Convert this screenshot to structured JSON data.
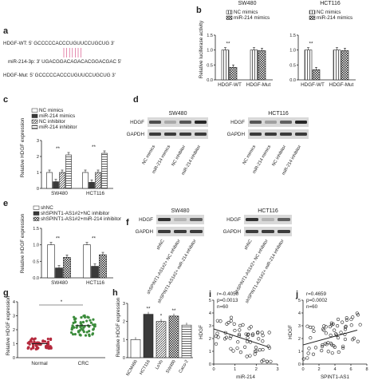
{
  "colors": {
    "ink": "#222222",
    "bar_dark": "#3a3a3a",
    "blot_bg": "#d9d9d9",
    "blot_band": "#1e1e1e",
    "seed_mark": "#d23c78"
  },
  "a": {
    "label": "a",
    "hdgf_wt": "HDGF-WT: 5' GCCCCCACCCUGUUCCUGCUG 3'",
    "mir": "miR-214-3p: 3' UGACGGACAGACACGGACGAC 5'",
    "hdgf_mut": "HDGF-Mut: 5' GCCCCCACCCUGUUCCUGCUG 3'"
  },
  "b": {
    "label": "b",
    "ylabel": "Relative luciferase activity",
    "legend": [
      "NC mimics",
      "miR-214 mimics"
    ],
    "panels": [
      {
        "title": "SW480",
        "sig": "**"
      },
      {
        "title": "HCT116",
        "sig": "**"
      }
    ]
  },
  "c": {
    "label": "c",
    "ylabel": "Relative HDGF expression",
    "legend": [
      "NC mimics",
      "miR-214 mimics",
      "NC inhibitor",
      "miR-214 inhibitor"
    ],
    "sig": [
      "**",
      "**",
      "**",
      "**"
    ]
  },
  "d": {
    "label": "d",
    "lanes": [
      "NC mimics",
      "miR-214 mimics",
      "NC inhibitor",
      "miR-214 inhibitor"
    ],
    "blots": [
      {
        "title": "SW480",
        "rows": [
          "HDGF",
          "GAPDH"
        ]
      },
      {
        "title": "HCT116",
        "rows": [
          "HDGF",
          "GAPDH"
        ]
      }
    ]
  },
  "e": {
    "label": "e",
    "ylabel": "Relative HDGF expression",
    "legend": [
      "shNC",
      "shSPINT1-AS1#2+NC inhibitor",
      "shSPINT1-AS1#2+miR-214 inhibitor"
    ],
    "sig": [
      "**",
      "*",
      "**",
      "*"
    ]
  },
  "f": {
    "label": "f",
    "lanes": [
      "shNC",
      "shSPINT1-AS1#2+ NC inhibitor",
      "shSPINT1-AS1#2+ miR-214 inhibitor"
    ],
    "blots": [
      {
        "title": "SW480",
        "rows": [
          "HDGF",
          "GAPDH"
        ]
      },
      {
        "title": "HCT116",
        "rows": [
          "HDGF",
          "GAPDH"
        ]
      }
    ]
  },
  "g": {
    "label": "g",
    "ylabel": "Relative HDGF expression",
    "sig": "*"
  },
  "h": {
    "label": "h",
    "ylabel": "Relative HDGF expression",
    "sig": [
      "**",
      "*",
      "**"
    ]
  },
  "i": {
    "label": "i",
    "ylabel": "HDGF",
    "xlabel": "miR-214",
    "stat_r": "r=-0.4050",
    "stat_p": "p=0.0013",
    "stat_n": "n=60"
  },
  "j": {
    "label": "j",
    "ylabel": "HDGF",
    "xlabel": "SPINT1-AS1",
    "stat_r": "r=0.4659",
    "stat_p": "p=0.0002",
    "stat_n": "n=60"
  },
  "chart_data": [
    {
      "panel": "b",
      "type": "bar",
      "title": "SW480",
      "categories": [
        "HDGF-WT",
        "HDGF-Mut"
      ],
      "series": [
        {
          "name": "NC mimics",
          "values": [
            1.0,
            1.0
          ]
        },
        {
          "name": "miR-214 mimics",
          "values": [
            0.42,
            0.98
          ]
        }
      ],
      "ylim": [
        0,
        1.5
      ],
      "yticks": [
        "0.0",
        "0.5",
        "1.0",
        "1.5"
      ]
    },
    {
      "panel": "b",
      "type": "bar",
      "title": "HCT116",
      "categories": [
        "HDGF-WT",
        "HDGF-Mut"
      ],
      "series": [
        {
          "name": "NC mimics",
          "values": [
            1.0,
            1.0
          ]
        },
        {
          "name": "miR-214 mimics",
          "values": [
            0.34,
            0.98
          ]
        }
      ],
      "ylim": [
        0,
        1.5
      ],
      "yticks": [
        "0.0",
        "0.5",
        "1.0",
        "1.5"
      ]
    },
    {
      "panel": "c",
      "type": "bar",
      "categories": [
        "SW480",
        "HCT116"
      ],
      "series": [
        {
          "name": "NC mimics",
          "values": [
            1.0,
            1.0
          ]
        },
        {
          "name": "miR-214 mimics",
          "values": [
            0.42,
            0.38
          ]
        },
        {
          "name": "NC inhibitor",
          "values": [
            1.0,
            1.0
          ]
        },
        {
          "name": "miR-214 inhibitor",
          "values": [
            2.1,
            2.2
          ]
        }
      ],
      "ylim": [
        0,
        3
      ],
      "yticks": [
        "0",
        "1",
        "2",
        "3"
      ]
    },
    {
      "panel": "e",
      "type": "bar",
      "categories": [
        "SW480",
        "HCT116"
      ],
      "series": [
        {
          "name": "shNC",
          "values": [
            1.0,
            1.0
          ]
        },
        {
          "name": "shSPINT1-AS1#2+NC inhibitor",
          "values": [
            0.3,
            0.35
          ]
        },
        {
          "name": "shSPINT1-AS1#2+miR-214 inhibitor",
          "values": [
            0.62,
            0.7
          ]
        }
      ],
      "ylim": [
        0,
        1.5
      ],
      "yticks": [
        "0.0",
        "0.5",
        "1.0",
        "1.5"
      ]
    },
    {
      "panel": "g",
      "type": "scatter",
      "categories": [
        "Normal",
        "CRC"
      ],
      "means": [
        1.0,
        2.3
      ],
      "ylim": [
        0,
        4
      ],
      "yticks": [
        "0",
        "1",
        "2",
        "3",
        "4"
      ]
    },
    {
      "panel": "h",
      "type": "bar",
      "categories": [
        "NCM460",
        "HCT116",
        "LoVo",
        "SW480",
        "Caco-2"
      ],
      "values": [
        1.0,
        2.4,
        2.0,
        2.3,
        1.8
      ],
      "ylim": [
        0,
        3
      ],
      "yticks": [
        "0",
        "1",
        "2",
        "3"
      ]
    },
    {
      "panel": "i",
      "type": "scatter",
      "xlabel": "miR-214",
      "ylabel": "HDGF",
      "xlim": [
        0,
        3
      ],
      "ylim": [
        0,
        5
      ],
      "xticks": [
        "0",
        "1",
        "2",
        "3"
      ],
      "yticks": [
        "0",
        "1",
        "2",
        "3",
        "4",
        "5"
      ],
      "fit": {
        "slope": -0.55,
        "intercept": 2.75
      }
    },
    {
      "panel": "j",
      "type": "scatter",
      "xlabel": "SPINT1-AS1",
      "ylabel": "HDGF",
      "xlim": [
        0,
        8
      ],
      "ylim": [
        0,
        5
      ],
      "xticks": [
        "0",
        "2",
        "4",
        "6",
        "8"
      ],
      "yticks": [
        "0",
        "1",
        "2",
        "3",
        "4",
        "5"
      ],
      "fit": {
        "slope": 0.17,
        "intercept": 1.5
      }
    }
  ]
}
